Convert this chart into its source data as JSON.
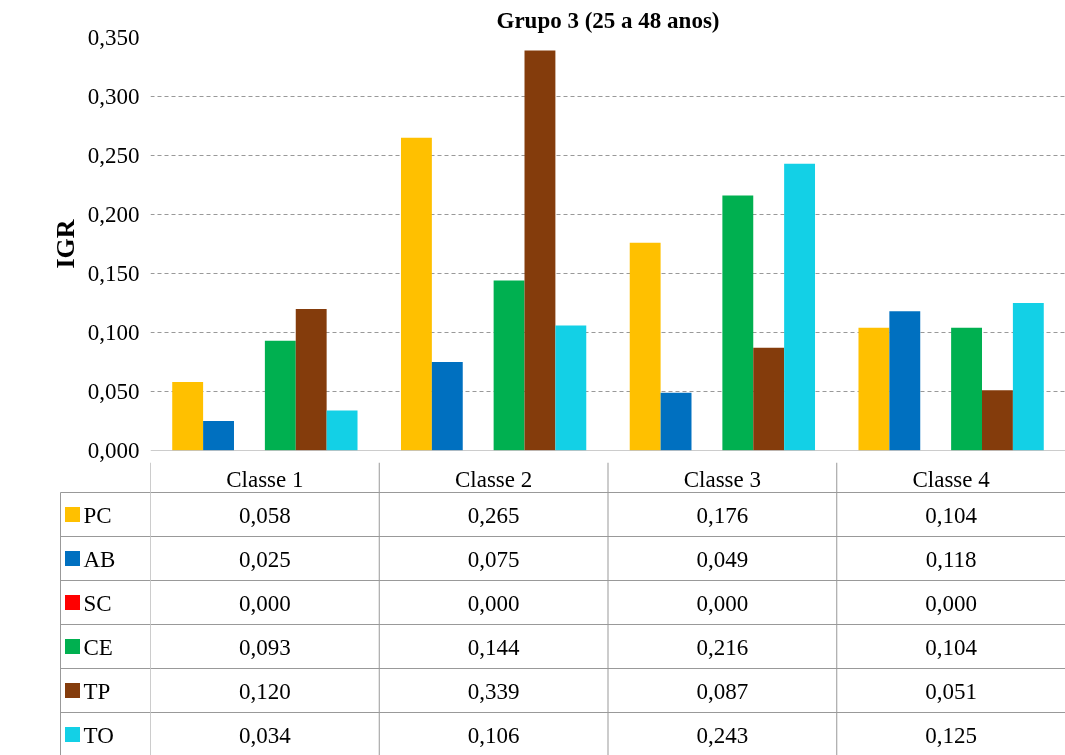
{
  "chart_data": {
    "type": "bar",
    "title": "Grupo 3 (25 a 48 anos)",
    "ylabel": "IGR",
    "categories": [
      "Classe 1",
      "Classe 2",
      "Classe 3",
      "Classe 4"
    ],
    "series": [
      {
        "name": "PC",
        "color": "#ffc000",
        "values": [
          0.058,
          0.265,
          0.176,
          0.104
        ],
        "value_labels": [
          "0,058",
          "0,265",
          "0,176",
          "0,104"
        ]
      },
      {
        "name": "AB",
        "color": "#0070c0",
        "values": [
          0.025,
          0.075,
          0.049,
          0.118
        ],
        "value_labels": [
          "0,025",
          "0,075",
          "0,049",
          "0,118"
        ]
      },
      {
        "name": "SC",
        "color": "#ff0000",
        "values": [
          0.0,
          0.0,
          0.0,
          0.0
        ],
        "value_labels": [
          "0,000",
          "0,000",
          "0,000",
          "0,000"
        ]
      },
      {
        "name": "CE",
        "color": "#00b050",
        "values": [
          0.093,
          0.144,
          0.216,
          0.104
        ],
        "value_labels": [
          "0,093",
          "0,144",
          "0,216",
          "0,104"
        ]
      },
      {
        "name": "TP",
        "color": "#843c0c",
        "values": [
          0.12,
          0.339,
          0.087,
          0.051
        ],
        "value_labels": [
          "0,120",
          "0,339",
          "0,087",
          "0,051"
        ]
      },
      {
        "name": "TO",
        "color": "#13d0e6",
        "values": [
          0.034,
          0.106,
          0.243,
          0.125
        ],
        "value_labels": [
          "0,034",
          "0,106",
          "0,243",
          "0,125"
        ]
      }
    ],
    "ylim": [
      0,
      0.35
    ],
    "yticks": [
      {
        "value": 0,
        "label": "0,000"
      },
      {
        "value": 0.05,
        "label": "0,050"
      },
      {
        "value": 0.1,
        "label": "0,100"
      },
      {
        "value": 0.15,
        "label": "0,150"
      },
      {
        "value": 0.2,
        "label": "0,200"
      },
      {
        "value": 0.25,
        "label": "0,250"
      },
      {
        "value": 0.3,
        "label": "0,300"
      },
      {
        "value": 0.35,
        "label": "0,350"
      }
    ],
    "grid": "y",
    "legend": "bottom"
  }
}
